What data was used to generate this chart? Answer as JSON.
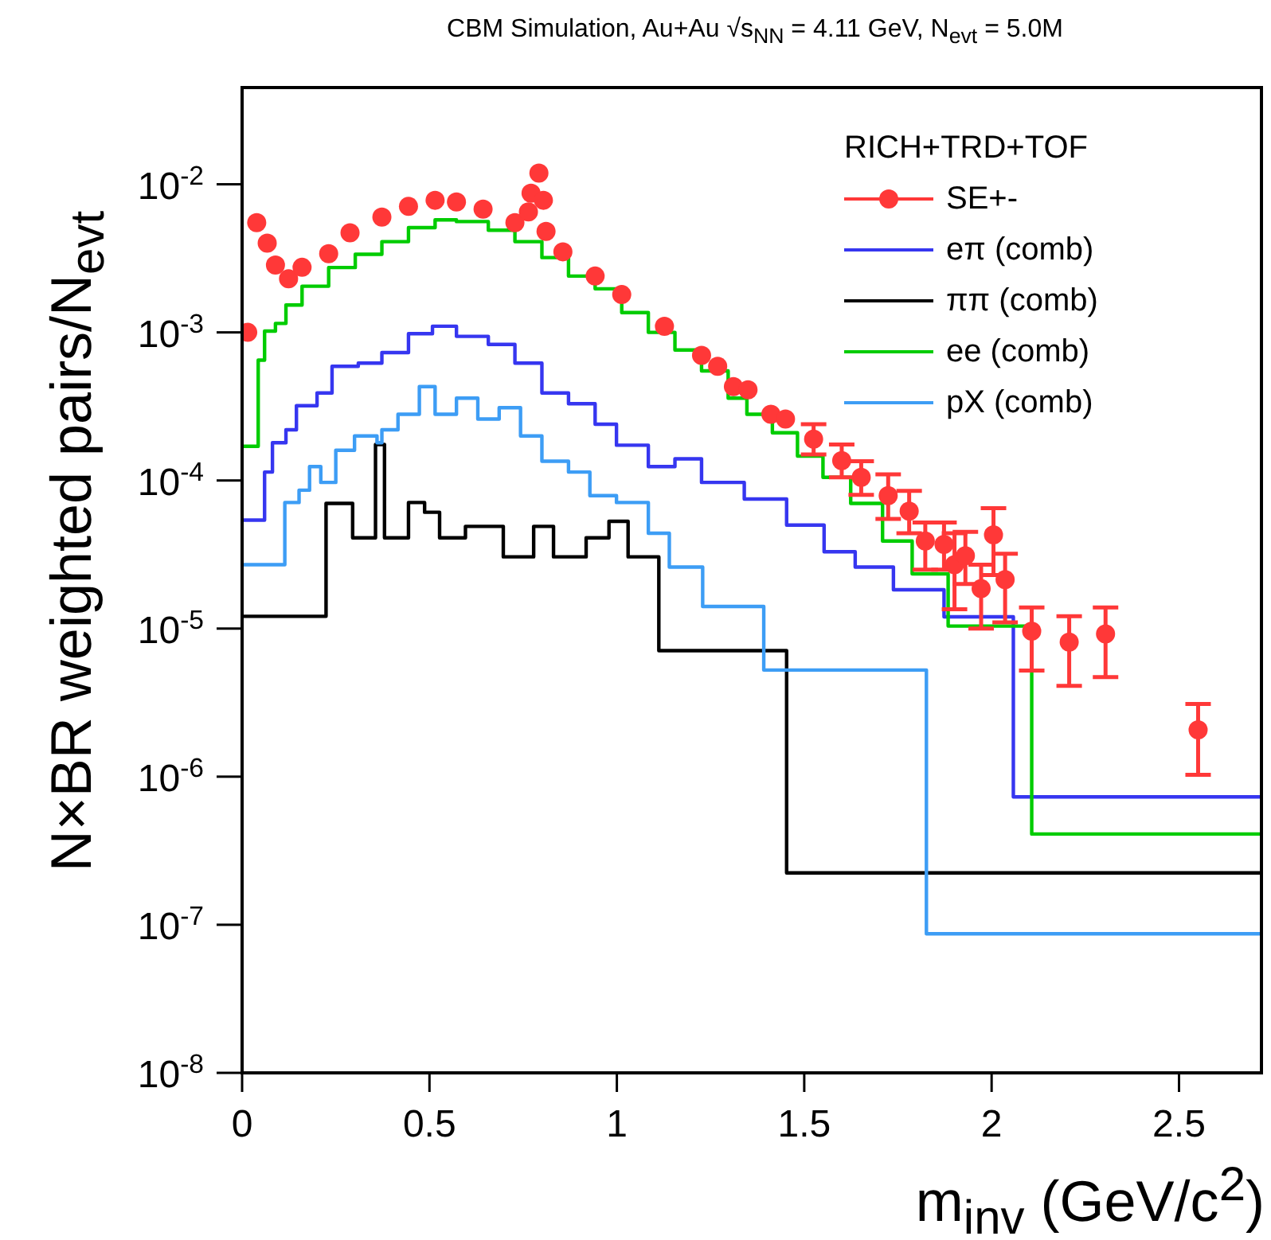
{
  "chart_data": {
    "type": "step",
    "title": "CBM Simulation, Au+Au √s$_{NN}$ = 4.11 GeV, N$_{evt}$ = 5.0M",
    "xlabel": "m$_{inv}$ (GeV/c$^{2}$)",
    "ylabel": "N×BR weighted pairs/N$_{evt}$",
    "legend_title": "RICH+TRD+TOF",
    "legend": "top right",
    "log": "y",
    "xlim": [
      0,
      2.72
    ],
    "xticks": [
      0,
      0.5,
      1,
      1.5,
      2,
      2.5
    ],
    "ylim": [
      1e-08,
      0.045
    ],
    "yticks": [
      {
        "value": 1e-08,
        "label": "10$^{-8}$"
      },
      {
        "value": 1e-07,
        "label": "10$^{-7}$"
      },
      {
        "value": 1e-06,
        "label": "10$^{-6}$"
      },
      {
        "value": 1e-05,
        "label": "10$^{-5}$"
      },
      {
        "value": 0.0001,
        "label": "10$^{-4}$"
      },
      {
        "value": 0.001,
        "label": "10$^{-3}$"
      },
      {
        "value": 0.01,
        "label": "10$^{-2}$"
      }
    ],
    "series": [
      {
        "name": "SE+-",
        "type": "scatter",
        "marker": "circle",
        "color": "#ff3838",
        "x": [
          0.015,
          0.039,
          0.067,
          0.089,
          0.124,
          0.16,
          0.231,
          0.288,
          0.373,
          0.444,
          0.515,
          0.572,
          0.643,
          0.728,
          0.764,
          0.771,
          0.792,
          0.804,
          0.811,
          0.856,
          0.942,
          1.013,
          1.127,
          1.226,
          1.269,
          1.311,
          1.35,
          1.411,
          1.45,
          1.525,
          1.6,
          1.652,
          1.724,
          1.78,
          1.823,
          1.873,
          1.901,
          1.93,
          1.972,
          2.005,
          2.036,
          2.107,
          2.207,
          2.304,
          2.551
        ],
        "values": [
          0.001,
          0.0055,
          0.004,
          0.00285,
          0.0023,
          0.00275,
          0.0034,
          0.0047,
          0.006,
          0.0071,
          0.0078,
          0.0076,
          0.0068,
          0.0055,
          0.0065,
          0.0087,
          0.0119,
          0.0078,
          0.0048,
          0.0035,
          0.0024,
          0.0018,
          0.0011,
          0.0007,
          0.00059,
          0.00043,
          0.00041,
          0.00028,
          0.00026,
          0.00019,
          0.000136,
          0.000105,
          7.9e-05,
          6.2e-05,
          3.9e-05,
          3.7e-05,
          2.7e-05,
          3.1e-05,
          1.86e-05,
          4.3e-05,
          2.14e-05,
          9.6e-06,
          8.1e-06,
          9.2e-06,
          2.07e-06
        ],
        "errors": [
          null,
          null,
          null,
          null,
          null,
          null,
          null,
          null,
          null,
          null,
          null,
          null,
          null,
          null,
          null,
          null,
          null,
          null,
          null,
          null,
          null,
          null,
          null,
          null,
          null,
          null,
          null,
          null,
          null,
          [
            0.00015,
            0.00024
          ],
          [
            0.000105,
            0.000175
          ],
          [
            8e-05,
            0.000135
          ],
          [
            5.5e-05,
            0.00011
          ],
          [
            4.4e-05,
            8.5e-05
          ],
          [
            2.5e-05,
            5.2e-05
          ],
          [
            2.5e-05,
            5.2e-05
          ],
          [
            1.35e-05,
            4.4e-05
          ],
          [
            2e-05,
            4.5e-05
          ],
          [
            1e-05,
            2.7e-05
          ],
          [
            2.3e-05,
            6.5e-05
          ],
          [
            1.1e-05,
            3.2e-05
          ],
          [
            5.2e-06,
            1.39e-05
          ],
          [
            4.1e-06,
            1.21e-05
          ],
          [
            4.7e-06,
            1.39e-05
          ],
          [
            1.03e-06,
            3.1e-06
          ]
        ]
      },
      {
        "name": "eπ (comb)",
        "color": "#3636f0",
        "x": [
          0,
          0.06,
          0.081,
          0.117,
          0.145,
          0.2,
          0.24,
          0.31,
          0.373,
          0.444,
          0.508,
          0.572,
          0.657,
          0.728,
          0.8,
          0.871,
          0.942,
          0.999,
          1.084,
          1.155,
          1.226,
          1.34,
          1.453,
          1.553,
          1.636,
          1.738,
          1.873,
          2.058,
          2.72
        ],
        "values": [
          5.4e-05,
          0.000114,
          0.00018,
          0.00022,
          0.00032,
          0.00039,
          0.00059,
          0.00062,
          0.00073,
          0.00098,
          0.0011,
          0.00094,
          0.00083,
          0.00062,
          0.00039,
          0.00033,
          0.00024,
          0.000173,
          0.000124,
          0.00014,
          9.7e-05,
          7.5e-05,
          5e-05,
          3.3e-05,
          2.6e-05,
          1.83e-05,
          1.2e-05,
          7.3e-07,
          7.3e-07
        ]
      },
      {
        "name": "ππ (comb)",
        "color": "#000000",
        "x": [
          0,
          0.224,
          0.295,
          0.356,
          0.38,
          0.444,
          0.487,
          0.527,
          0.596,
          0.697,
          0.778,
          0.831,
          0.918,
          0.979,
          1.03,
          1.112,
          1.453,
          2.72
        ],
        "values": [
          1.21e-05,
          7e-05,
          4.1e-05,
          0.000175,
          4.1e-05,
          7.1e-05,
          6.1e-05,
          4.1e-05,
          4.9e-05,
          3.05e-05,
          4.9e-05,
          3.05e-05,
          4.1e-05,
          5.3e-05,
          3.05e-05,
          7.1e-06,
          2.24e-07,
          2.24e-07
        ]
      },
      {
        "name": "ee (comb)",
        "color": "#00cc00",
        "x": [
          0,
          0.043,
          0.06,
          0.089,
          0.117,
          0.16,
          0.231,
          0.302,
          0.373,
          0.444,
          0.515,
          0.572,
          0.657,
          0.728,
          0.8,
          0.871,
          0.942,
          1.013,
          1.084,
          1.155,
          1.226,
          1.297,
          1.347,
          1.415,
          1.482,
          1.55,
          1.624,
          1.709,
          1.788,
          1.884,
          2.107,
          2.72
        ],
        "values": [
          0.00017,
          0.00065,
          0.00102,
          0.00115,
          0.00153,
          0.00205,
          0.00274,
          0.00337,
          0.0041,
          0.0051,
          0.00575,
          0.0056,
          0.0049,
          0.0041,
          0.0032,
          0.0024,
          0.00197,
          0.00136,
          0.001,
          0.00076,
          0.00055,
          0.00036,
          0.00028,
          0.00021,
          0.000146,
          0.000105,
          7e-05,
          3.9e-05,
          2.34e-05,
          1.04e-05,
          4.1e-07,
          4.1e-07
        ]
      },
      {
        "name": "pX (comb)",
        "color": "#3d9df5",
        "x": [
          0,
          0.114,
          0.152,
          0.18,
          0.21,
          0.25,
          0.3,
          0.36,
          0.373,
          0.416,
          0.473,
          0.515,
          0.572,
          0.629,
          0.686,
          0.743,
          0.8,
          0.871,
          0.928,
          0.999,
          1.084,
          1.14,
          1.229,
          1.392,
          1.826,
          2.72
        ],
        "values": [
          2.7e-05,
          7.1e-05,
          8.6e-05,
          0.000124,
          9.7e-05,
          0.00016,
          0.0002,
          0.00018,
          0.00022,
          0.00028,
          0.00043,
          0.00028,
          0.00036,
          0.00026,
          0.00031,
          0.0002,
          0.000135,
          0.000114,
          7.9e-05,
          7.1e-05,
          4.4e-05,
          2.6e-05,
          1.41e-05,
          5.25e-06,
          8.7e-08,
          8.7e-08
        ]
      }
    ]
  }
}
